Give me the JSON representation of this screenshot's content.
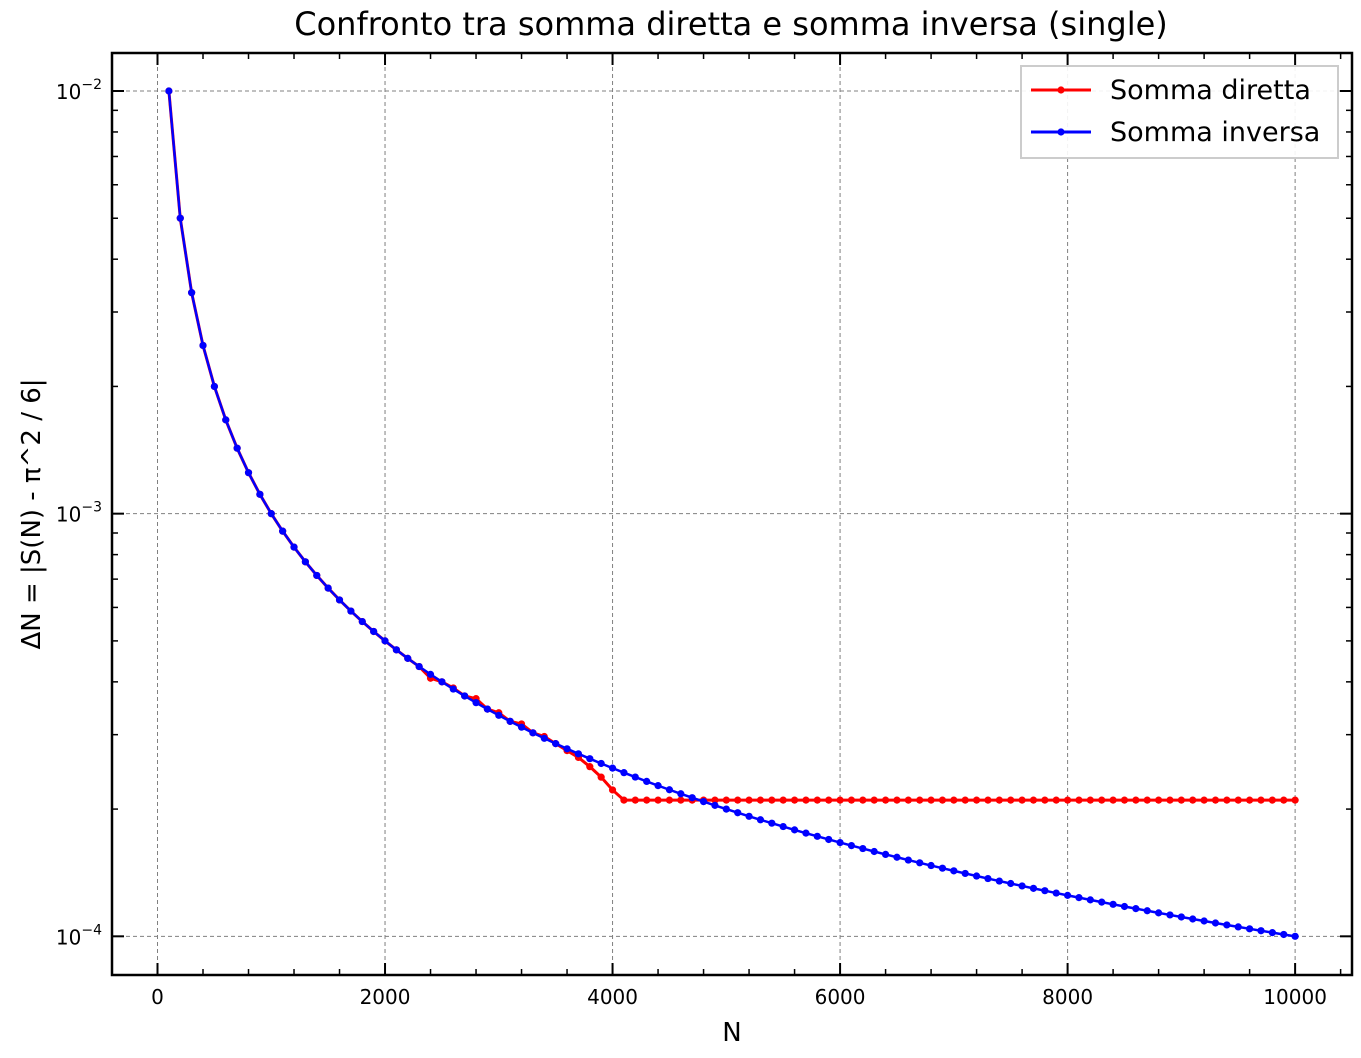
{
  "chart_data": {
    "type": "line",
    "title": "Confronto tra somma diretta e somma inversa (single)",
    "xlabel": "N",
    "ylabel": "ΔN = |S(N) -  π^2 / 6|",
    "x_scale": "linear",
    "y_scale": "log",
    "xlim": [
      -400,
      10500
    ],
    "ylim": [
      8.1e-05,
      0.0123
    ],
    "grid": true,
    "legend_position": "top-right",
    "x_ticks": [
      0,
      2000,
      4000,
      6000,
      8000,
      10000
    ],
    "x_tick_labels": [
      "0",
      "2000",
      "4000",
      "6000",
      "8000",
      "10000"
    ],
    "y_ticks": [
      0.0001,
      0.001,
      0.01
    ],
    "y_tick_labels": [
      {
        "base": "10",
        "exp": "−4"
      },
      {
        "base": "10",
        "exp": "−3"
      },
      {
        "base": "10",
        "exp": "−2"
      }
    ],
    "x": {
      "start": 100,
      "stop": 10000,
      "step": 100
    },
    "series": [
      {
        "name": "Somma diretta",
        "color": "#ff0000",
        "model": "1/N until plateau",
        "plateau_start": 4100,
        "plateau_value": 0.00021,
        "adjustments": {
          "2400": 0.000408,
          "2600": 0.000387,
          "2800": 0.000365,
          "3000": 0.000338,
          "3200": 0.000318,
          "3400": 0.000297,
          "3600": 0.000275,
          "3700": 0.000265,
          "3800": 0.000252,
          "3900": 0.000238,
          "4000": 0.000222
        }
      },
      {
        "name": "Somma inversa",
        "color": "#0000ff",
        "model": "1/N"
      }
    ]
  }
}
